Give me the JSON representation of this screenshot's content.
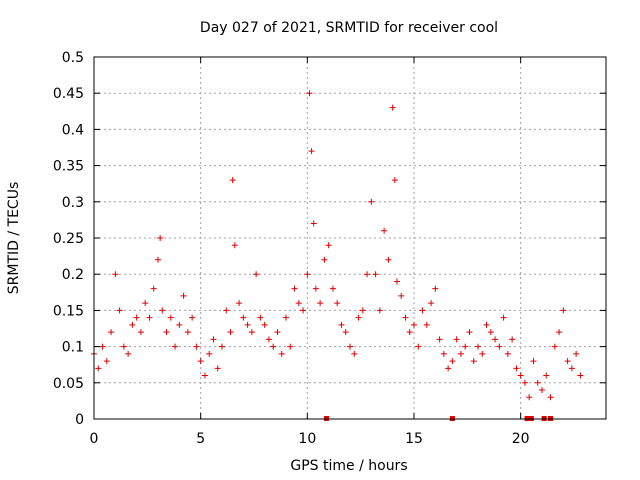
{
  "colors": {
    "point": "#e00000",
    "grid": "#a0a0a0",
    "frame": "#000000",
    "background": "#ffffff"
  },
  "chart_data": {
    "type": "scatter",
    "title": "Day 027 of 2021, SRMTID for receiver cool",
    "xlabel": "GPS time / hours",
    "ylabel": "SRMTID / TECUs",
    "xlim": [
      0,
      24
    ],
    "ylim": [
      0,
      0.5
    ],
    "grid": true,
    "marker": "+",
    "x_ticks": [
      0,
      5,
      10,
      15,
      20
    ],
    "x_tick_labels": [
      "0",
      "5",
      "10",
      "15",
      "20"
    ],
    "y_ticks": [
      0,
      0.05,
      0.1,
      0.15,
      0.2,
      0.25,
      0.3,
      0.35,
      0.4,
      0.45,
      0.5
    ],
    "y_tick_labels": [
      "0",
      "0.05",
      "0.1",
      "0.15",
      "0.2",
      "0.25",
      "0.3",
      "0.35",
      "0.4",
      "0.45",
      "0.5"
    ],
    "series": [
      {
        "name": "SRMTID",
        "x": [
          0.0,
          0.2,
          0.4,
          0.6,
          0.8,
          1.0,
          1.2,
          1.4,
          1.6,
          1.8,
          2.0,
          2.2,
          2.4,
          2.6,
          2.8,
          3.0,
          3.1,
          3.2,
          3.4,
          3.6,
          3.8,
          4.0,
          4.2,
          4.4,
          4.6,
          4.8,
          5.0,
          5.2,
          5.4,
          5.6,
          5.8,
          6.0,
          6.2,
          6.4,
          6.5,
          6.6,
          6.8,
          7.0,
          7.2,
          7.4,
          7.6,
          7.8,
          8.0,
          8.2,
          8.4,
          8.6,
          8.8,
          9.0,
          9.2,
          9.4,
          9.6,
          9.8,
          10.0,
          10.1,
          10.2,
          10.3,
          10.4,
          10.6,
          10.8,
          11.0,
          11.2,
          11.4,
          11.6,
          11.8,
          12.0,
          12.2,
          12.4,
          12.6,
          12.8,
          13.0,
          13.2,
          13.4,
          13.6,
          13.8,
          14.0,
          14.1,
          14.2,
          14.4,
          14.6,
          14.8,
          15.0,
          15.2,
          15.4,
          15.6,
          15.8,
          16.0,
          16.2,
          16.4,
          16.6,
          16.8,
          17.0,
          17.2,
          17.4,
          17.6,
          17.8,
          18.0,
          18.2,
          18.4,
          18.6,
          18.8,
          19.0,
          19.2,
          19.4,
          19.6,
          19.8,
          20.0,
          20.2,
          20.4,
          20.6,
          20.8,
          21.0,
          21.2,
          21.4,
          21.6,
          21.8,
          22.0,
          22.2,
          22.4,
          22.6,
          22.8
        ],
        "y": [
          0.09,
          0.07,
          0.1,
          0.08,
          0.12,
          0.2,
          0.15,
          0.1,
          0.09,
          0.13,
          0.14,
          0.12,
          0.16,
          0.14,
          0.18,
          0.22,
          0.25,
          0.15,
          0.12,
          0.14,
          0.1,
          0.13,
          0.17,
          0.12,
          0.14,
          0.1,
          0.08,
          0.06,
          0.09,
          0.11,
          0.07,
          0.1,
          0.15,
          0.12,
          0.33,
          0.24,
          0.16,
          0.14,
          0.13,
          0.12,
          0.2,
          0.14,
          0.13,
          0.11,
          0.1,
          0.12,
          0.09,
          0.14,
          0.1,
          0.18,
          0.16,
          0.15,
          0.2,
          0.45,
          0.37,
          0.27,
          0.18,
          0.16,
          0.22,
          0.24,
          0.18,
          0.16,
          0.13,
          0.12,
          0.1,
          0.09,
          0.14,
          0.15,
          0.2,
          0.3,
          0.2,
          0.15,
          0.26,
          0.22,
          0.43,
          0.33,
          0.19,
          0.17,
          0.14,
          0.12,
          0.13,
          0.1,
          0.15,
          0.13,
          0.16,
          0.18,
          0.11,
          0.09,
          0.07,
          0.08,
          0.11,
          0.09,
          0.1,
          0.12,
          0.08,
          0.1,
          0.09,
          0.13,
          0.12,
          0.11,
          0.1,
          0.14,
          0.09,
          0.11,
          0.07,
          0.06,
          0.05,
          0.03,
          0.08,
          0.05,
          0.04,
          0.06,
          0.03,
          0.1,
          0.12,
          0.15,
          0.08,
          0.07,
          0.09,
          0.06
        ]
      }
    ],
    "zero_markers_x": [
      10.9,
      16.8,
      20.3,
      20.5,
      21.1,
      21.4
    ]
  }
}
